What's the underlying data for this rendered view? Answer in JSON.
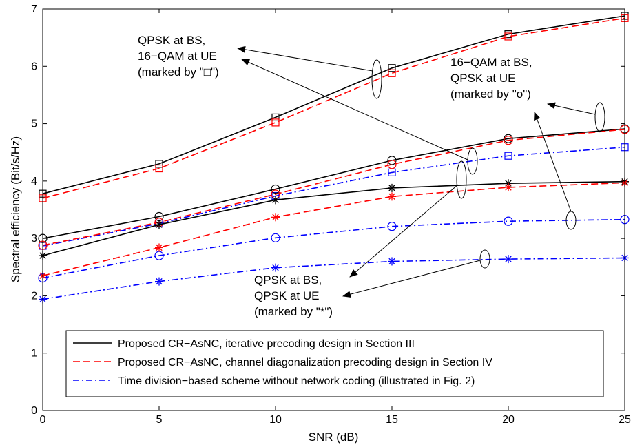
{
  "chart_data": {
    "type": "line",
    "title": "",
    "xlabel": "SNR (dB)",
    "ylabel": "Spectral efficiency (Bit/s/Hz)",
    "xlim": [
      0,
      25
    ],
    "ylim": [
      0,
      7
    ],
    "xticks": [
      0,
      5,
      10,
      15,
      20,
      25
    ],
    "yticks": [
      0,
      1,
      2,
      3,
      4,
      5,
      6,
      7
    ],
    "grid": false,
    "legend_placement": "bottom-center",
    "x": [
      0,
      5,
      10,
      15,
      20,
      25
    ],
    "series": [
      {
        "scheme": "iterative",
        "marker": "square",
        "color": "#000000",
        "dash": "solid",
        "values": [
          3.78,
          4.3,
          5.11,
          5.97,
          6.56,
          6.88
        ]
      },
      {
        "scheme": "diagonalization",
        "marker": "square",
        "color": "#ff0000",
        "dash": "dashed",
        "values": [
          3.7,
          4.22,
          5.02,
          5.88,
          6.52,
          6.84
        ]
      },
      {
        "scheme": "time-division",
        "marker": "square",
        "color": "#0000ff",
        "dash": "dashdot",
        "values": [
          2.87,
          3.26,
          3.74,
          4.15,
          4.44,
          4.59
        ]
      },
      {
        "scheme": "iterative",
        "marker": "circle",
        "color": "#000000",
        "dash": "solid",
        "values": [
          3.0,
          3.38,
          3.86,
          4.36,
          4.74,
          4.91
        ]
      },
      {
        "scheme": "diagonalization",
        "marker": "circle",
        "color": "#ff0000",
        "dash": "dashed",
        "values": [
          2.88,
          3.28,
          3.77,
          4.29,
          4.71,
          4.9
        ]
      },
      {
        "scheme": "time-division",
        "marker": "circle",
        "color": "#0000ff",
        "dash": "dashdot",
        "values": [
          2.31,
          2.7,
          3.01,
          3.21,
          3.3,
          3.33
        ]
      },
      {
        "scheme": "iterative",
        "marker": "star",
        "color": "#000000",
        "dash": "solid",
        "values": [
          2.7,
          3.24,
          3.67,
          3.88,
          3.96,
          3.99
        ]
      },
      {
        "scheme": "diagonalization",
        "marker": "star",
        "color": "#ff0000",
        "dash": "dashed",
        "values": [
          2.35,
          2.84,
          3.37,
          3.73,
          3.89,
          3.97
        ]
      },
      {
        "scheme": "time-division",
        "marker": "star",
        "color": "#0000ff",
        "dash": "dashdot",
        "values": [
          1.94,
          2.25,
          2.49,
          2.6,
          2.64,
          2.66
        ]
      }
    ],
    "legend": [
      {
        "label": "Proposed CR−AsNC, iterative precoding design in Section III",
        "color": "#000000",
        "dash": "solid"
      },
      {
        "label": "Proposed CR−AsNC, channel diagonalization precoding design in Section IV",
        "color": "#ff0000",
        "dash": "dashed"
      },
      {
        "label": "Time division−based scheme without network coding (illustrated in Fig. 2)",
        "color": "#0000ff",
        "dash": "dashdot"
      }
    ],
    "annotations": [
      {
        "id": "square",
        "lines": [
          "QPSK at BS,",
          "16−QAM at UE",
          "(marked by \"□\")"
        ]
      },
      {
        "id": "circle",
        "lines": [
          "16−QAM at BS,",
          "QPSK at UE",
          "(marked by \"o\")"
        ]
      },
      {
        "id": "star",
        "lines": [
          "QPSK at BS,",
          "QPSK at UE",
          "(marked by \"*\")"
        ]
      }
    ]
  }
}
